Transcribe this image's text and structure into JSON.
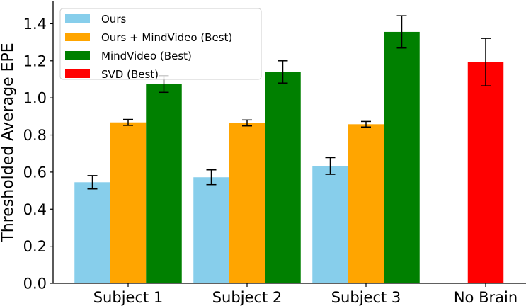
{
  "chart_data": {
    "type": "bar",
    "title": "",
    "xlabel": "",
    "ylabel": "Thresholded Average EPE",
    "ylim": [
      0,
      1.52
    ],
    "yticks": [
      0.0,
      0.2,
      0.4,
      0.6,
      0.8,
      1.0,
      1.2,
      1.4
    ],
    "ytick_labels": [
      "0.0",
      "0.2",
      "0.4",
      "0.6",
      "0.8",
      "1.0",
      "1.2",
      "1.4"
    ],
    "categories": [
      "Subject 1",
      "Subject 2",
      "Subject 3",
      "No Brain"
    ],
    "grid": false,
    "legend_position": "upper left",
    "series": [
      {
        "name": "Ours",
        "color": "#87ceeb",
        "values": [
          0.545,
          0.572,
          0.633,
          null
        ],
        "errors": [
          0.036,
          0.04,
          0.045,
          null
        ]
      },
      {
        "name": "Ours + MindVideo (Best)",
        "color": "#ffa500",
        "values": [
          0.868,
          0.865,
          0.858,
          null
        ],
        "errors": [
          0.016,
          0.016,
          0.015,
          null
        ]
      },
      {
        "name": "MindVideo (Best)",
        "color": "#008000",
        "values": [
          1.075,
          1.14,
          1.356,
          null
        ],
        "errors": [
          0.045,
          0.06,
          0.087,
          null
        ]
      },
      {
        "name": "SVD (Best)",
        "color": "#ff0000",
        "values": [
          null,
          null,
          null,
          1.193
        ],
        "errors": [
          null,
          null,
          null,
          0.128
        ]
      }
    ]
  }
}
